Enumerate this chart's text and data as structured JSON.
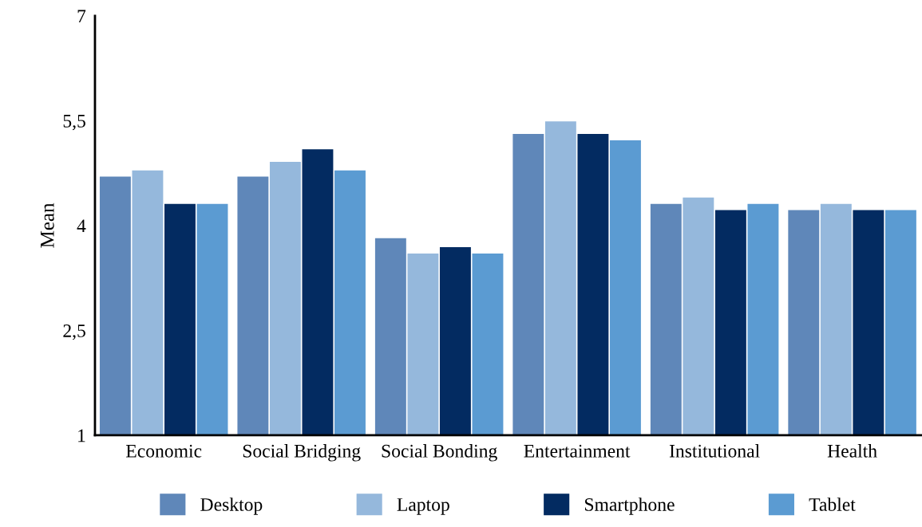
{
  "chart_data": {
    "type": "bar",
    "ylabel": "Mean",
    "categories": [
      "Economic",
      "Social Bridging",
      "Social Bonding",
      "Entertainment",
      "Institutional",
      "Health"
    ],
    "series": [
      {
        "name": "Desktop",
        "color": "#5f87b9",
        "values": [
          4.7,
          4.7,
          3.82,
          5.31,
          4.31,
          4.22
        ]
      },
      {
        "name": "Laptop",
        "color": "#95b8dc",
        "values": [
          4.79,
          4.91,
          3.6,
          5.49,
          4.4,
          4.31
        ]
      },
      {
        "name": "Smartphone",
        "color": "#032b61",
        "values": [
          4.31,
          5.09,
          3.69,
          5.31,
          4.22,
          4.22
        ]
      },
      {
        "name": "Tablet",
        "color": "#5b9bd2",
        "values": [
          4.31,
          4.79,
          3.6,
          5.22,
          4.31,
          4.22
        ]
      }
    ],
    "ylim": [
      1,
      7
    ],
    "yticks": [
      1,
      {
        "value": 2.5,
        "label": "2,5"
      },
      4,
      {
        "value": 5.5,
        "label": "5,5"
      },
      7
    ],
    "grid": false,
    "legend": "bottom"
  }
}
